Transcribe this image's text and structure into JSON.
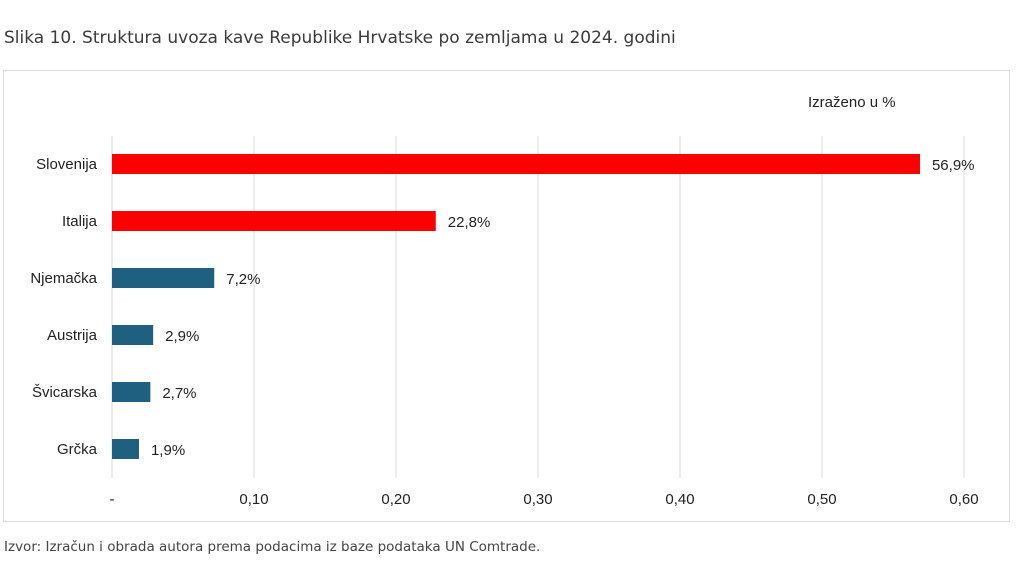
{
  "title": "Slika 10. Struktura uvoza kave Republike Hrvatske po zemljama u 2024. godini",
  "source": "Izvor: Izračun i obrada autora prema podacima iz baze podataka UN Comtrade.",
  "chart_data": {
    "type": "bar",
    "orientation": "horizontal",
    "unit_note": "Izraženo u %",
    "categories": [
      "Slovenija",
      "Italija",
      "Njemačka",
      "Austrija",
      "Švicarska",
      "Grčka"
    ],
    "values": [
      0.569,
      0.228,
      0.072,
      0.029,
      0.027,
      0.019
    ],
    "data_labels": [
      "56,9%",
      "22,8%",
      "7,2%",
      "2,9%",
      "2,7%",
      "1,9%"
    ],
    "colors": [
      "#ff0000",
      "#ff0000",
      "#1f5f7f",
      "#1f5f7f",
      "#1f5f7f",
      "#1f5f7f"
    ],
    "xlim": [
      0,
      0.6
    ],
    "xticks": [
      0,
      0.1,
      0.2,
      0.3,
      0.4,
      0.5,
      0.6
    ],
    "xtick_labels": [
      "-",
      "0,10",
      "0,20",
      "0,30",
      "0,40",
      "0,50",
      "0,60"
    ],
    "grid": true
  }
}
